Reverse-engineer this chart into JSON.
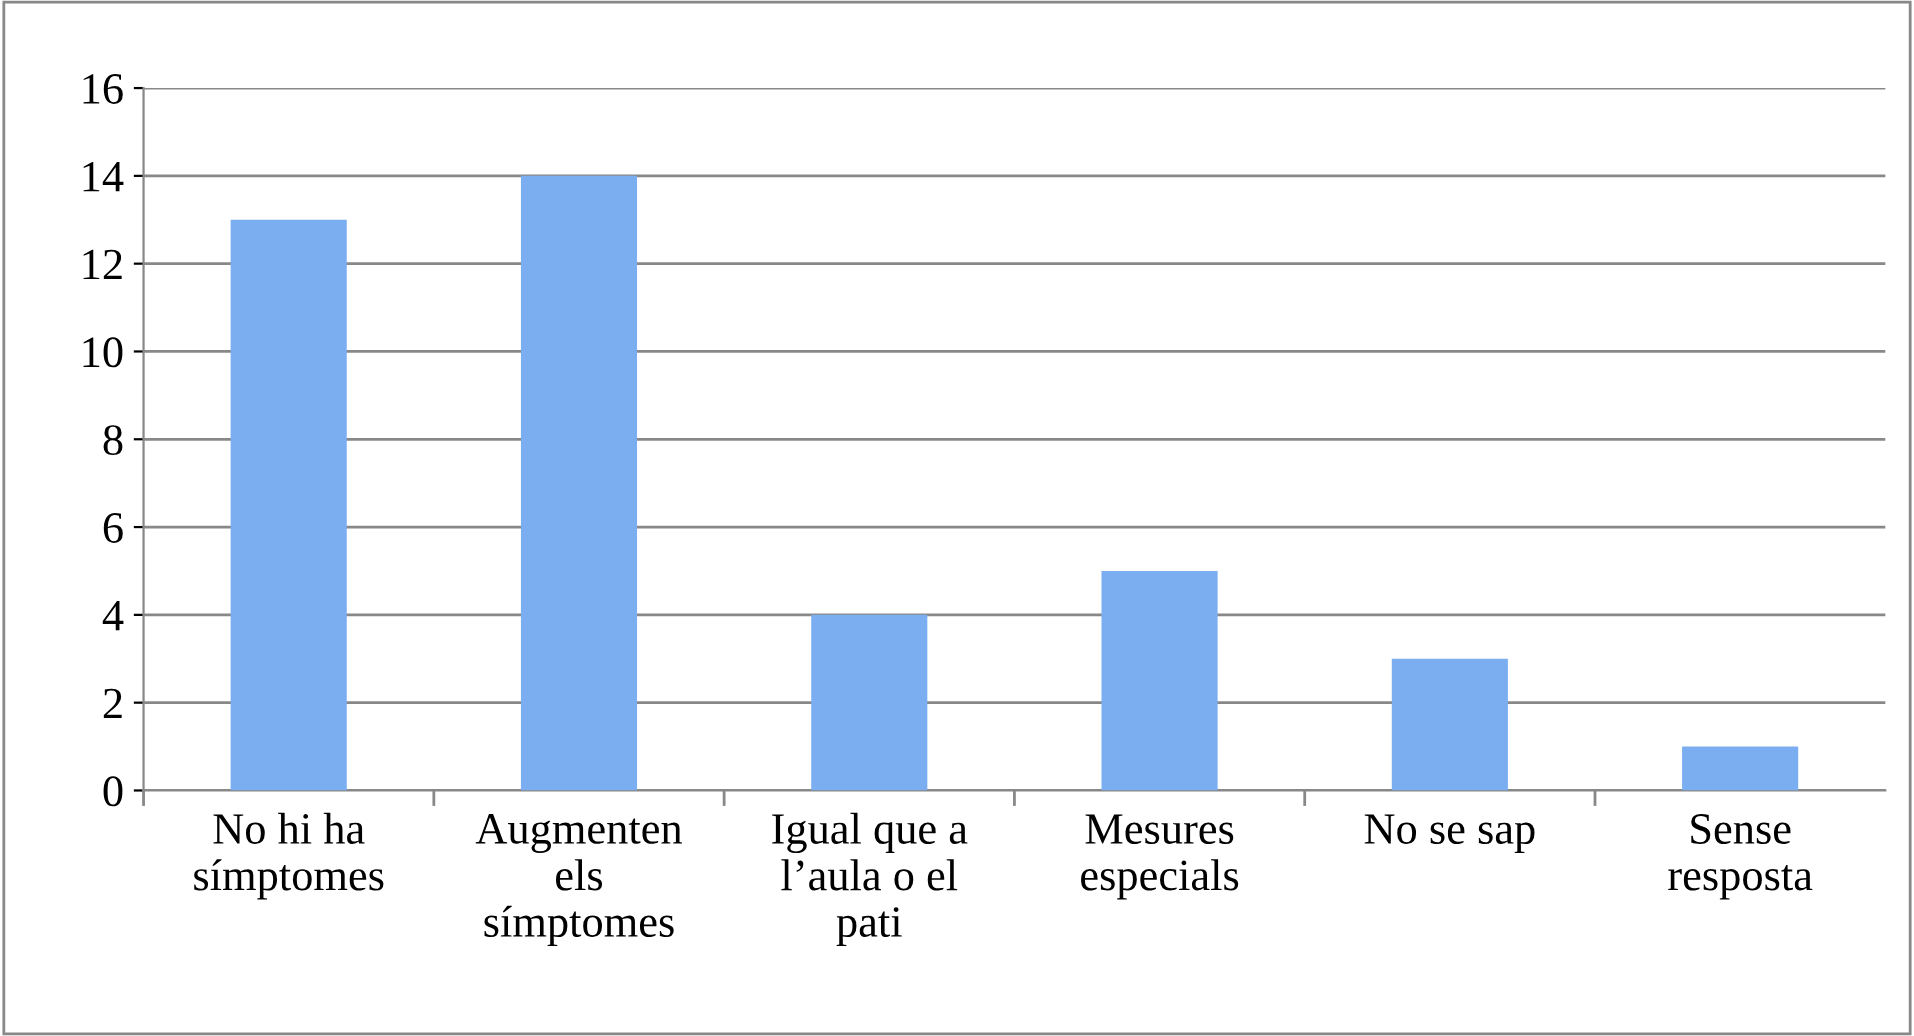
{
  "chart_data": {
    "type": "bar",
    "categories": [
      "No hi ha\nsímptomes",
      "Augmenten\nels\nsímptomes",
      "Igual que a\nl’aula o el\npati",
      "Mesures\nespecials",
      "No se sap",
      "Sense\nresposta"
    ],
    "values": [
      13,
      14,
      4,
      5,
      3,
      1
    ],
    "color": "#7aaef0",
    "ylim": [
      0,
      16
    ],
    "yticks": [
      0,
      2,
      4,
      6,
      8,
      10,
      12,
      14,
      16
    ],
    "grid": "y",
    "legend": false
  }
}
